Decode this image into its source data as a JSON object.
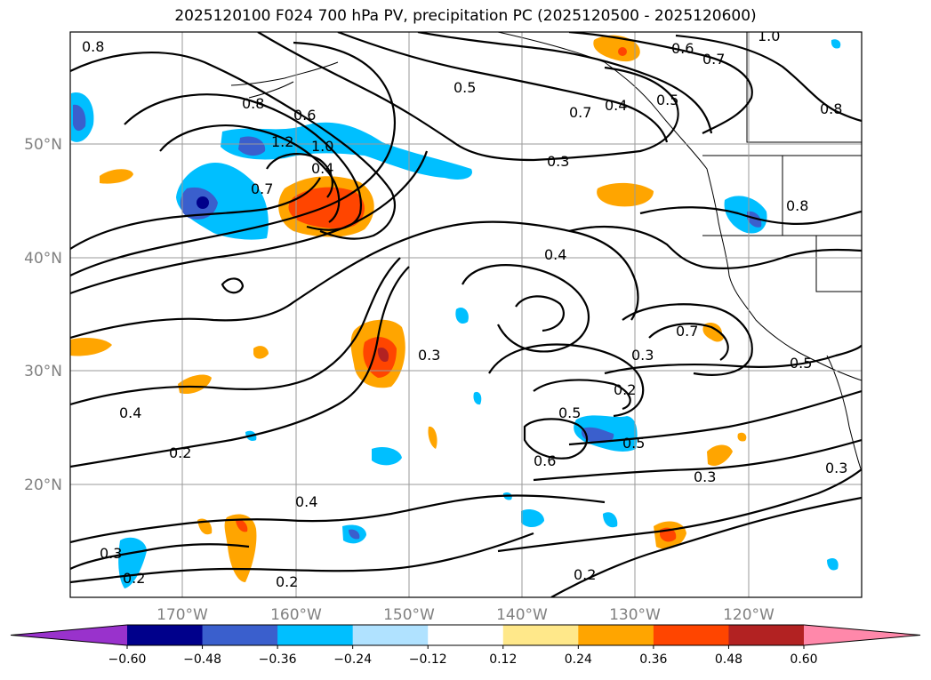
{
  "title": "2025120100 F024 700 hPa PV, precipitation PC (2025120500 - 2025120600)",
  "map": {
    "lon_ticks": [
      "170°W",
      "160°W",
      "150°W",
      "140°W",
      "130°W",
      "120°W"
    ],
    "lat_ticks": [
      "50°N",
      "40°N",
      "30°N",
      "20°N"
    ],
    "pv_contour_labels": [
      "0.8",
      "0.8",
      "0.6",
      "1.2",
      "1.0",
      "0.7",
      "0.4",
      "0.5",
      "0.6",
      "0.7",
      "0.5",
      "0.4",
      "0.8",
      "0.7",
      "1.0",
      "0.8",
      "0.3",
      "0.4",
      "0.3",
      "0.7",
      "0.3",
      "0.2",
      "0.5",
      "0.5",
      "0.6",
      "0.3",
      "0.3",
      "0.2",
      "0.4",
      "0.2",
      "0.3",
      "0.2",
      "0.4",
      "0.2",
      "0.5"
    ]
  },
  "colorbar": {
    "levels": [
      "−0.60",
      "−0.48",
      "−0.36",
      "−0.24",
      "−0.12",
      "0.12",
      "0.24",
      "0.36",
      "0.48",
      "0.60"
    ],
    "colors": [
      "#9932cc",
      "#00008b",
      "#3a5fcd",
      "#00bfff",
      "#b0e2ff",
      "#ffffff",
      "#ffe88a",
      "#ffa500",
      "#ff4500",
      "#b22222",
      "#ff88aa"
    ]
  }
}
